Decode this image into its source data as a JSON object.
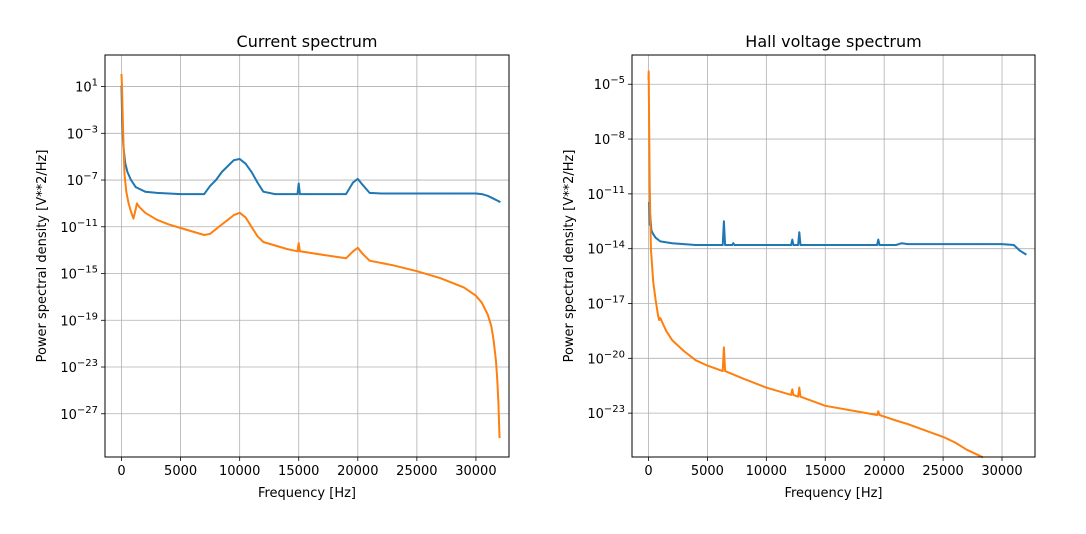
{
  "chart_data": [
    {
      "type": "line",
      "title": "Current spectrum",
      "xlabel": "Frequency [Hz]",
      "ylabel": "Power spectral density [V**2/Hz]",
      "yscale": "log",
      "xlim": [
        -1400,
        32800
      ],
      "ylim_log10": [
        -30.7,
        3.7
      ],
      "xticks": [
        0,
        5000,
        10000,
        15000,
        20000,
        25000,
        30000
      ],
      "xtick_labels": [
        "0",
        "5000",
        "10000",
        "15000",
        "20000",
        "25000",
        "30000"
      ],
      "yticks_log10": [
        1,
        -3,
        -7,
        -11,
        -15,
        -19,
        -23,
        -27
      ],
      "ytick_labels": [
        {
          "base": "10",
          "exp": "1"
        },
        {
          "base": "10",
          "exp": "−3"
        },
        {
          "base": "10",
          "exp": "−7"
        },
        {
          "base": "10",
          "exp": "−11"
        },
        {
          "base": "10",
          "exp": "−15"
        },
        {
          "base": "10",
          "exp": "−19"
        },
        {
          "base": "10",
          "exp": "−23"
        },
        {
          "base": "10",
          "exp": "−27"
        }
      ],
      "grid": true,
      "series": [
        {
          "name": "series-1",
          "color": "#1f77b4",
          "x": [
            0,
            60,
            150,
            300,
            500,
            800,
            1200,
            1600,
            2000,
            3000,
            4000,
            5000,
            6000,
            7000,
            7500,
            8000,
            8500,
            9000,
            9500,
            10000,
            10500,
            11000,
            11500,
            12000,
            13000,
            14000,
            14900,
            15000,
            15100,
            16000,
            19000,
            19600,
            20000,
            20400,
            21000,
            22000,
            25000,
            28000,
            30000,
            30500,
            31000,
            31500,
            32000
          ],
          "log10": [
            1.0,
            -2.0,
            -4.0,
            -5.5,
            -6.3,
            -7.0,
            -7.6,
            -7.8,
            -8.0,
            -8.1,
            -8.15,
            -8.2,
            -8.2,
            -8.2,
            -7.5,
            -7.0,
            -6.3,
            -5.8,
            -5.3,
            -5.2,
            -5.6,
            -6.3,
            -7.2,
            -8.0,
            -8.2,
            -8.2,
            -8.2,
            -7.3,
            -8.2,
            -8.2,
            -8.2,
            -7.2,
            -6.9,
            -7.4,
            -8.1,
            -8.15,
            -8.15,
            -8.15,
            -8.15,
            -8.2,
            -8.35,
            -8.6,
            -8.85
          ]
        },
        {
          "name": "series-2",
          "color": "#ff7f0e",
          "x": [
            0,
            40,
            120,
            250,
            400,
            600,
            800,
            1000,
            1200,
            1300,
            1500,
            2000,
            3000,
            4000,
            5000,
            6000,
            7000,
            7500,
            8000,
            8500,
            9000,
            9500,
            10000,
            10500,
            11000,
            11500,
            12000,
            13000,
            14000,
            14900,
            15000,
            15100,
            17000,
            19000,
            19600,
            20000,
            20400,
            21000,
            23000,
            25000,
            27000,
            29000,
            30000,
            30500,
            31000,
            31300,
            31500,
            31700,
            31800,
            31900,
            32000
          ],
          "log10": [
            2.0,
            1.0,
            -2.5,
            -6.5,
            -8.0,
            -9.0,
            -9.7,
            -10.3,
            -9.5,
            -9.0,
            -9.3,
            -9.8,
            -10.4,
            -10.8,
            -11.1,
            -11.4,
            -11.7,
            -11.6,
            -11.2,
            -10.8,
            -10.4,
            -10.0,
            -9.8,
            -10.2,
            -11.0,
            -11.8,
            -12.3,
            -12.6,
            -12.9,
            -13.1,
            -12.4,
            -13.1,
            -13.4,
            -13.7,
            -13.1,
            -12.8,
            -13.3,
            -13.9,
            -14.3,
            -14.8,
            -15.4,
            -16.2,
            -16.9,
            -17.5,
            -18.5,
            -19.5,
            -20.7,
            -22.5,
            -24.0,
            -26.0,
            -29.0
          ]
        }
      ]
    },
    {
      "type": "line",
      "title": "Hall voltage spectrum",
      "xlabel": "Frequency [Hz]",
      "ylabel": "Power spectral density [V**2/Hz]",
      "yscale": "log",
      "xlim": [
        -1400,
        32800
      ],
      "ylim_log10": [
        -25.4,
        -3.4
      ],
      "xticks": [
        0,
        5000,
        10000,
        15000,
        20000,
        25000,
        30000
      ],
      "xtick_labels": [
        "0",
        "5000",
        "10000",
        "15000",
        "20000",
        "25000",
        "30000"
      ],
      "yticks_log10": [
        -5,
        -8,
        -11,
        -14,
        -17,
        -20,
        -23
      ],
      "ytick_labels": [
        {
          "base": "10",
          "exp": "−5"
        },
        {
          "base": "10",
          "exp": "−8"
        },
        {
          "base": "10",
          "exp": "−11"
        },
        {
          "base": "10",
          "exp": "−14"
        },
        {
          "base": "10",
          "exp": "−17"
        },
        {
          "base": "10",
          "exp": "−20"
        },
        {
          "base": "10",
          "exp": "−23"
        }
      ],
      "grid": true,
      "series": [
        {
          "name": "series-1",
          "color": "#1f77b4",
          "x": [
            60,
            100,
            150,
            250,
            400,
            600,
            1000,
            2000,
            3000,
            4000,
            5000,
            6300,
            6400,
            6500,
            7100,
            7200,
            7300,
            10000,
            12100,
            12200,
            12300,
            12700,
            12800,
            12900,
            15000,
            19400,
            19500,
            19600,
            21000,
            21500,
            22000,
            25000,
            28000,
            30000,
            31000,
            31500,
            32000
          ],
          "log10": [
            -11.5,
            -12.7,
            -12.2,
            -13.0,
            -13.2,
            -13.4,
            -13.6,
            -13.7,
            -13.75,
            -13.8,
            -13.8,
            -13.8,
            -12.5,
            -13.8,
            -13.8,
            -13.7,
            -13.8,
            -13.8,
            -13.8,
            -13.5,
            -13.8,
            -13.8,
            -13.1,
            -13.8,
            -13.8,
            -13.8,
            -13.5,
            -13.8,
            -13.8,
            -13.7,
            -13.75,
            -13.75,
            -13.75,
            -13.75,
            -13.8,
            -14.1,
            -14.3
          ]
        },
        {
          "name": "series-2",
          "color": "#ff7f0e",
          "x": [
            0,
            20,
            50,
            100,
            200,
            400,
            600,
            800,
            900,
            1000,
            1500,
            2000,
            3000,
            4000,
            5000,
            6300,
            6400,
            6500,
            8000,
            10000,
            12100,
            12200,
            12300,
            12700,
            12800,
            12900,
            15000,
            19400,
            19500,
            19600,
            21000,
            22000,
            25000,
            26000,
            27000,
            28000,
            28300
          ],
          "log10": [
            -4.7,
            -4.3,
            -7.0,
            -10.5,
            -14.0,
            -15.8,
            -16.8,
            -17.6,
            -17.9,
            -17.8,
            -18.5,
            -19.0,
            -19.6,
            -20.1,
            -20.4,
            -20.7,
            -19.4,
            -20.7,
            -21.1,
            -21.6,
            -22.0,
            -21.7,
            -22.0,
            -22.1,
            -21.6,
            -22.1,
            -22.6,
            -23.1,
            -22.9,
            -23.1,
            -23.4,
            -23.6,
            -24.3,
            -24.6,
            -25.0,
            -25.3,
            -25.4
          ]
        }
      ]
    }
  ]
}
